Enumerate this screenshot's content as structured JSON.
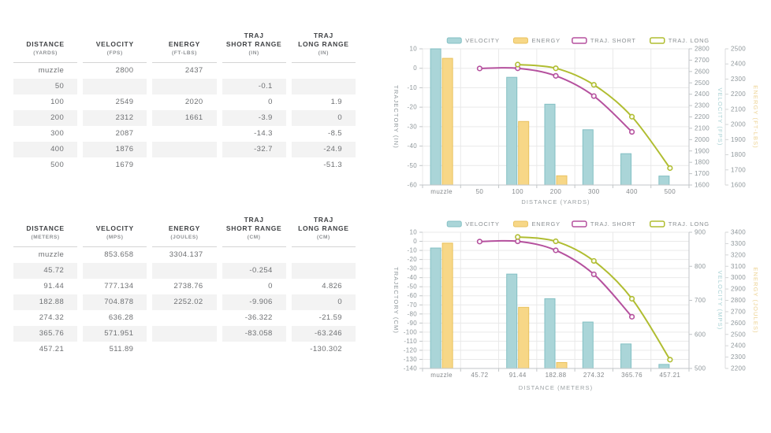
{
  "tables": [
    {
      "name": "ballistics-table-yards",
      "columns": [
        {
          "label": "DISTANCE",
          "unit": "(YARDS)"
        },
        {
          "label": "VELOCITY",
          "unit": "(FPS)"
        },
        {
          "label": "ENERGY",
          "unit": "(FT-LBS)"
        },
        {
          "label": "TRAJ\nSHORT RANGE",
          "unit": "(IN)"
        },
        {
          "label": "TRAJ\nLONG RANGE",
          "unit": "(IN)"
        }
      ],
      "rows": [
        [
          "muzzle",
          "2800",
          "2437",
          "",
          ""
        ],
        [
          "50",
          "",
          "",
          "-0.1",
          ""
        ],
        [
          "100",
          "2549",
          "2020",
          "0",
          "1.9"
        ],
        [
          "200",
          "2312",
          "1661",
          "-3.9",
          "0"
        ],
        [
          "300",
          "2087",
          "",
          "-14.3",
          "-8.5"
        ],
        [
          "400",
          "1876",
          "",
          "-32.7",
          "-24.9"
        ],
        [
          "500",
          "1679",
          "",
          "",
          "-51.3"
        ]
      ]
    },
    {
      "name": "ballistics-table-meters",
      "columns": [
        {
          "label": "DISTANCE",
          "unit": "(METERS)"
        },
        {
          "label": "VELOCITY",
          "unit": "(MPS)"
        },
        {
          "label": "ENERGY",
          "unit": "(JOULES)"
        },
        {
          "label": "TRAJ\nSHORT RANGE",
          "unit": "(CM)"
        },
        {
          "label": "TRAJ\nLONG RANGE",
          "unit": "(CM)"
        }
      ],
      "rows": [
        [
          "muzzle",
          "853.658",
          "3304.137",
          "",
          ""
        ],
        [
          "45.72",
          "",
          "",
          "-0.254",
          ""
        ],
        [
          "91.44",
          "777.134",
          "2738.76",
          "0",
          "4.826"
        ],
        [
          "182.88",
          "704.878",
          "2252.02",
          "-9.906",
          "0"
        ],
        [
          "274.32",
          "636.28",
          "",
          "-36.322",
          "-21.59"
        ],
        [
          "365.76",
          "571.951",
          "",
          "-83.058",
          "-63.246"
        ],
        [
          "457.21",
          "511.89",
          "",
          "",
          "-130.302"
        ]
      ]
    }
  ],
  "chart_data": [
    {
      "type": "bar",
      "name": "ballistics-chart-yards",
      "categories": [
        "muzzle",
        "50",
        "100",
        "200",
        "300",
        "400",
        "500"
      ],
      "xlabel": "DISTANCE (YARDS)",
      "grid": true,
      "legend_position": "top",
      "legend": [
        "VELOCITY",
        "ENERGY",
        "TRAJ. SHORT",
        "TRAJ. LONG"
      ],
      "axes": {
        "trajectory": {
          "title": "TRAJECTORY (IN)",
          "min": -60,
          "max": 10,
          "step": 10,
          "color": "#8f979b"
        },
        "velocity": {
          "title": "VELOCITY (FPS)",
          "min": 1600,
          "max": 2800,
          "step": 100,
          "color": "#a9d2d5"
        },
        "energy": {
          "title": "ENERGY (FT-LBS)",
          "min": 1600,
          "max": 2500,
          "step": 100,
          "color": "#edd395"
        }
      },
      "series": [
        {
          "name": "VELOCITY",
          "type": "bar",
          "axis": "velocity",
          "fill": "#aad5d8",
          "stroke": "#84c0c4",
          "values": [
            2800,
            null,
            2549,
            2312,
            2087,
            1876,
            1679
          ]
        },
        {
          "name": "ENERGY",
          "type": "bar",
          "axis": "energy",
          "fill": "#f7d787",
          "stroke": "#e9c25f",
          "values": [
            2437,
            null,
            2020,
            1661,
            null,
            null,
            null
          ]
        },
        {
          "name": "TRAJ. SHORT",
          "type": "line",
          "axis": "trajectory",
          "fill": "#ffffff",
          "stroke": "#b5519e",
          "values": [
            null,
            -0.1,
            0,
            -3.9,
            -14.3,
            -32.7,
            null
          ]
        },
        {
          "name": "TRAJ. LONG",
          "type": "line",
          "axis": "trajectory",
          "fill": "#ffffff",
          "stroke": "#b0bd31",
          "values": [
            null,
            null,
            1.9,
            0,
            -8.5,
            -24.9,
            -51.3
          ]
        }
      ]
    },
    {
      "type": "bar",
      "name": "ballistics-chart-meters",
      "categories": [
        "muzzle",
        "45.72",
        "91.44",
        "182.88",
        "274.32",
        "365.76",
        "457.21"
      ],
      "xlabel": "DISTANCE (METERS)",
      "grid": true,
      "legend_position": "top",
      "legend": [
        "VELOCITY",
        "ENERGY",
        "TRAJ. SHORT",
        "TRAJ. LONG"
      ],
      "axes": {
        "trajectory": {
          "title": "TRAJECTORY (CM)",
          "min": -140,
          "max": 10,
          "step": 10,
          "color": "#8f979b"
        },
        "velocity": {
          "title": "VELOCITY (MPS)",
          "min": 500,
          "max": 900,
          "step": 100,
          "color": "#a9d2d5"
        },
        "energy": {
          "title": "ENERGY (JOULES)",
          "min": 2200,
          "max": 3400,
          "step": 100,
          "color": "#edd395"
        }
      },
      "series": [
        {
          "name": "VELOCITY",
          "type": "bar",
          "axis": "velocity",
          "fill": "#aad5d8",
          "stroke": "#84c0c4",
          "values": [
            853.658,
            null,
            777.134,
            704.878,
            636.28,
            571.951,
            511.89
          ]
        },
        {
          "name": "ENERGY",
          "type": "bar",
          "axis": "energy",
          "fill": "#f7d787",
          "stroke": "#e9c25f",
          "values": [
            3304.137,
            null,
            2738.76,
            2252.02,
            null,
            null,
            null
          ]
        },
        {
          "name": "TRAJ. SHORT",
          "type": "line",
          "axis": "trajectory",
          "fill": "#ffffff",
          "stroke": "#b5519e",
          "values": [
            null,
            -0.254,
            0,
            -9.906,
            -36.322,
            -83.058,
            null
          ]
        },
        {
          "name": "TRAJ. LONG",
          "type": "line",
          "axis": "trajectory",
          "fill": "#ffffff",
          "stroke": "#b0bd31",
          "values": [
            null,
            null,
            4.826,
            0,
            -21.59,
            -63.246,
            -130.302
          ]
        }
      ]
    }
  ],
  "colors": {
    "velocity": "#aad5d8",
    "energy": "#f7d787",
    "traj_short": "#b5519e",
    "traj_long": "#b0bd31",
    "grid": "#e9e9e9",
    "axis_line": "#c2c6c8",
    "row_stripe": "#f3f3f3"
  }
}
